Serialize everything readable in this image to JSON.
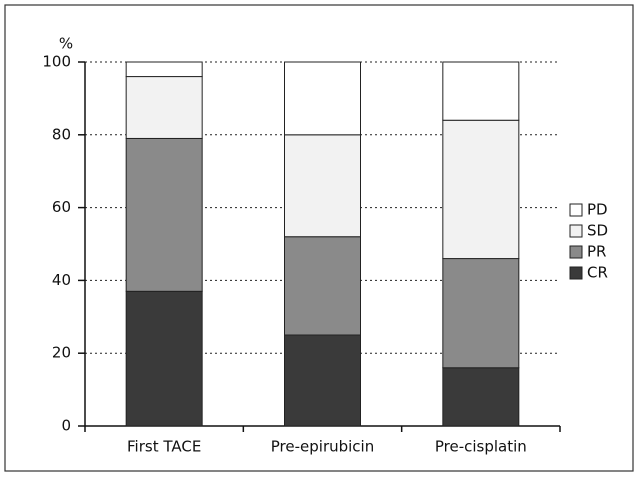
{
  "chart_data": {
    "type": "stacked_bar",
    "y_label": "%",
    "categories": [
      "First TACE",
      "Pre-epirubicin",
      "Pre-cisplatin"
    ],
    "series": [
      {
        "name": "CR",
        "color": "#3a3a3a",
        "values": [
          37,
          25,
          16
        ]
      },
      {
        "name": "PR",
        "color": "#8a8a8a",
        "values": [
          42,
          27,
          30
        ]
      },
      {
        "name": "SD",
        "color": "#f2f2f2",
        "values": [
          17,
          28,
          38
        ]
      },
      {
        "name": "PD",
        "color": "#ffffff",
        "values": [
          4,
          20,
          16
        ]
      }
    ],
    "ylim": [
      0,
      100
    ],
    "yticks": [
      0,
      20,
      40,
      60,
      80,
      100
    ],
    "grid": true,
    "legend": "right"
  }
}
